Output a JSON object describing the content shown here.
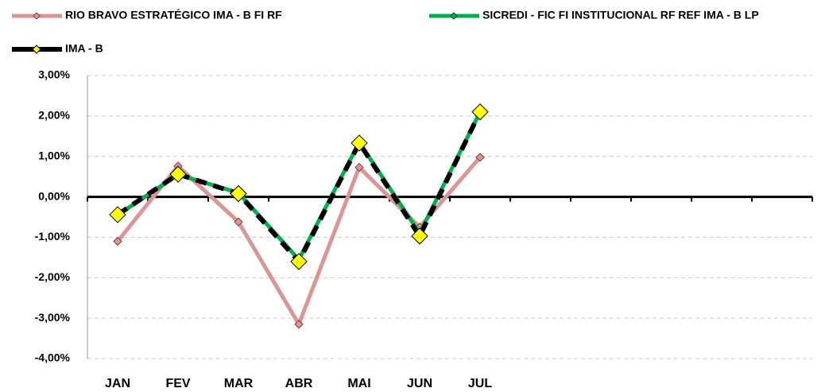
{
  "chart_data": {
    "type": "line",
    "categories": [
      "JAN",
      "FEV",
      "MAR",
      "ABR",
      "MAI",
      "JUN",
      "JUL",
      null,
      null,
      null,
      null,
      null
    ],
    "series": [
      {
        "name": "RIO BRAVO ESTRATÉGICO IMA - B FI RF",
        "color": "#d99694",
        "values": [
          -1.1,
          0.76,
          -0.62,
          -3.15,
          0.73,
          -0.75,
          0.98,
          null,
          null,
          null,
          null,
          null
        ]
      },
      {
        "name": "SICREDI - FIC FI INSTITUCIONAL RF REF IMA - B LP",
        "color": "#00b050",
        "values": [
          -0.45,
          0.55,
          0.1,
          -1.55,
          1.35,
          -0.9,
          2.1,
          null,
          null,
          null,
          null,
          null
        ]
      },
      {
        "name": "IMA - B",
        "color": "#000000",
        "values": [
          -0.44,
          0.56,
          0.08,
          -1.6,
          1.33,
          -0.97,
          2.1,
          null,
          null,
          null,
          null,
          null
        ]
      }
    ],
    "ylim": [
      -4,
      3
    ],
    "yticks": [
      {
        "value": -4,
        "label": "-4,00%"
      },
      {
        "value": -3,
        "label": "-3,00%"
      },
      {
        "value": -2,
        "label": "-2,00%"
      },
      {
        "value": -1,
        "label": "-1,00%"
      },
      {
        "value": 0,
        "label": "0,00%"
      },
      {
        "value": 1,
        "label": "1,00%"
      },
      {
        "value": 2,
        "label": "2,00%"
      },
      {
        "value": 3,
        "label": "3,00%"
      }
    ],
    "grid": true
  }
}
